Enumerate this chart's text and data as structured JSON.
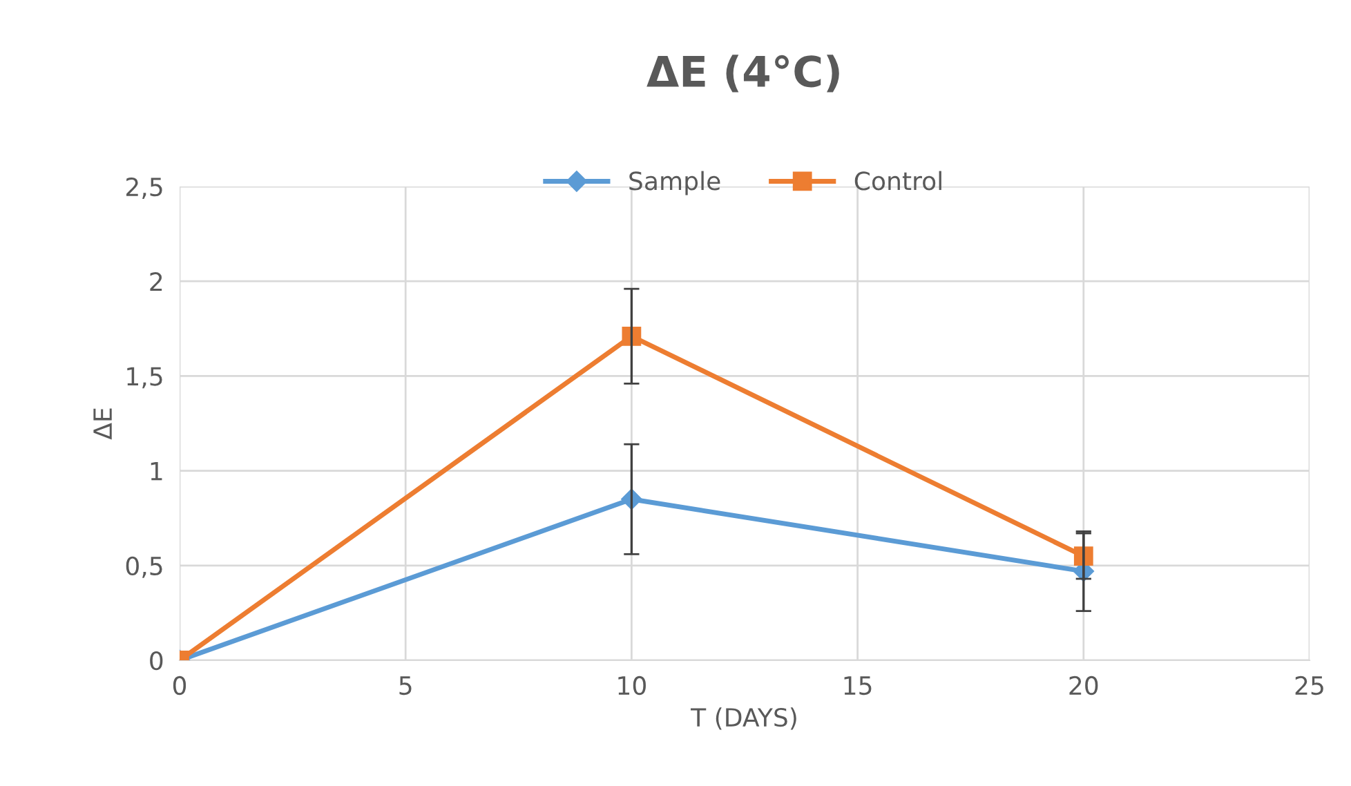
{
  "chart_data": {
    "type": "line",
    "title": "ΔE (4°C)",
    "xlabel": "T (DAYS)",
    "ylabel": "ΔE",
    "series": [
      {
        "name": "Sample",
        "color": "#5b9bd5",
        "marker": "diamond",
        "x": [
          0,
          10,
          20
        ],
        "values": [
          0,
          0.85,
          0.47
        ],
        "errors": [
          null,
          0.29,
          0.21
        ]
      },
      {
        "name": "Control",
        "color": "#ed7d31",
        "marker": "square",
        "x": [
          0,
          10,
          20
        ],
        "values": [
          0,
          1.71,
          0.55
        ],
        "errors": [
          null,
          0.25,
          0.12
        ]
      }
    ],
    "xlim": [
      0,
      25
    ],
    "xticks": [
      0,
      5,
      10,
      15,
      20,
      25
    ],
    "ylim": [
      0,
      2.5
    ],
    "yticks": [
      0,
      {
        "value": 0.5,
        "label": "0,5"
      },
      1,
      {
        "value": 1.5,
        "label": "1,5"
      },
      2,
      {
        "value": 2.5,
        "label": "2,5"
      }
    ],
    "grid": true,
    "legend": "top"
  }
}
